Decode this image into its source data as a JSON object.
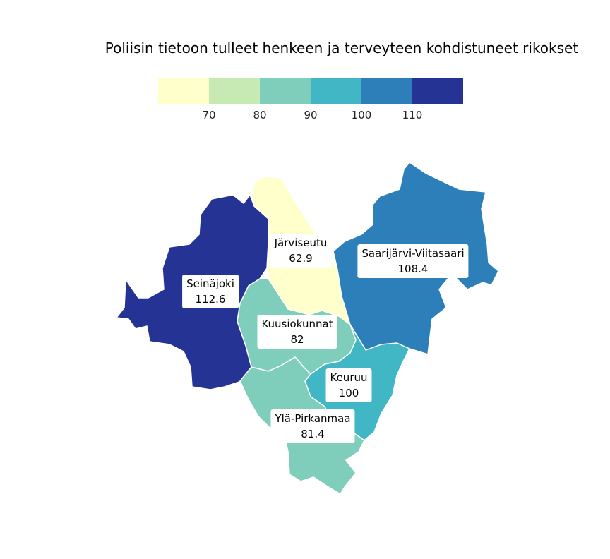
{
  "title": "Poliisin tietoon tulleet henkeen ja terveyteen kohdistuneet rikokset",
  "legend": {
    "colors": [
      "#ffffcc",
      "#c7e9b4",
      "#7fcdbb",
      "#41b6c4",
      "#2c7fb8",
      "#253494"
    ],
    "ticks": [
      "70",
      "80",
      "90",
      "100",
      "110"
    ]
  },
  "regions": [
    {
      "id": "seinajoki",
      "name": "Seinäjoki",
      "value": "112.6",
      "color": "#253494"
    },
    {
      "id": "jarviseutu",
      "name": "Järviseutu",
      "value": "62.9",
      "color": "#ffffcc"
    },
    {
      "id": "saarijarvi",
      "name": "Saarijärvi-Viitasaari",
      "value": "108.4",
      "color": "#2c7fb8"
    },
    {
      "id": "kuusiokunnat",
      "name": "Kuusiokunnat",
      "value": "82",
      "color": "#7fcdbb"
    },
    {
      "id": "keuruu",
      "name": "Keuruu",
      "value": "100",
      "color": "#41b6c4"
    },
    {
      "id": "ylapirkanmaa",
      "name": "Ylä-Pirkanmaa",
      "value": "81.4",
      "color": "#7fcdbb"
    }
  ]
}
